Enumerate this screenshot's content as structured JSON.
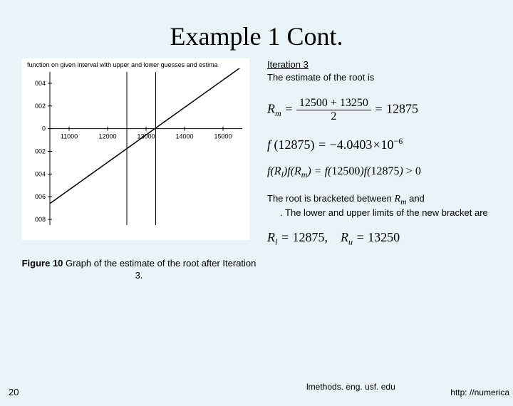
{
  "title": "Example 1 Cont.",
  "iteration_label": "Iteration 3",
  "estimate_text": "The estimate of the root is",
  "chart": {
    "title": "function on given interval with upper and lower guesses and estima",
    "xticks": [
      11000,
      12000,
      13000,
      14000,
      15000
    ],
    "yticks": [
      "004",
      "002",
      "0",
      "002",
      "004",
      "006",
      "008"
    ],
    "yvalues": [
      0.004,
      0.002,
      0,
      -0.002,
      -0.004,
      -0.006,
      -0.008
    ],
    "xlim": [
      10500,
      15500
    ],
    "ylim": [
      -0.0085,
      0.005
    ],
    "line_p1": {
      "x": 10500,
      "y": -0.0066
    },
    "line_p2": {
      "x": 15500,
      "y": 0.0055
    },
    "vline1": 12500,
    "vline2": 13250,
    "xaxis_at": 0,
    "line_color": "#000000",
    "grid_color": "#000000",
    "background": "#ffffff",
    "tick_fontsize": 9
  },
  "formula_rm": {
    "lhs_var": "R",
    "lhs_sub": "m",
    "numerator": "12500 + 13250",
    "denominator": "2",
    "result": "12875"
  },
  "formula_f": {
    "func": "f",
    "arg": "12875",
    "mantissa": "−4.0403",
    "exp": "−6"
  },
  "formula_prod": {
    "t1_var": "R",
    "t1_sub": "l",
    "t2_var": "R",
    "t2_sub": "m",
    "arg1": "12500",
    "arg2": "12875",
    "rel": "> 0"
  },
  "bracket_text_1": "The root is bracketed between",
  "bracket_var1": {
    "var": "R",
    "sub": "m"
  },
  "bracket_text_2": "and",
  "bracket_text_3": ". The lower and upper limits of the new bracket are",
  "formula_limits": {
    "v1_var": "R",
    "v1_sub": "l",
    "v1_val": "12875",
    "v2_var": "R",
    "v2_sub": "u",
    "v2_val": "13250"
  },
  "fig_caption": "<b>Figure 10</b> Graph of the estimate of the root after Iteration 3.",
  "page_number": "20",
  "footer_url_left": "lmethods. eng. usf. edu",
  "footer_url_right": "http: //numerica"
}
